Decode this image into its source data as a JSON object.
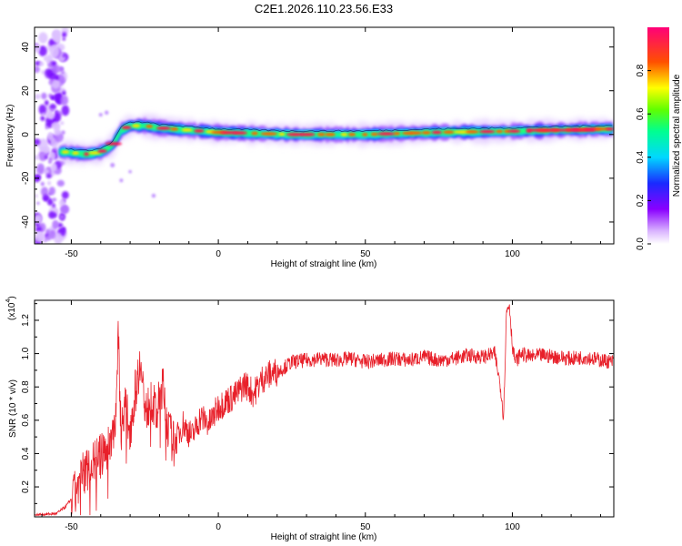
{
  "title": "C2E1.2026.110.23.56.E33",
  "chart_data": [
    {
      "type": "heatmap",
      "title": "C2E1.2026.110.23.56.E33",
      "xlabel": "Height of straight line (km)",
      "ylabel": "Frequency (Hz)",
      "xlim": [
        -62.5,
        134.5
      ],
      "ylim": [
        -50,
        49
      ],
      "xticks": [
        -50,
        0,
        50,
        100
      ],
      "xtick_labels": [
        "-50",
        "0",
        "50",
        "100"
      ],
      "yticks": [
        -40,
        -20,
        0,
        20,
        40
      ],
      "ytick_labels": [
        "-40",
        "-20",
        "0",
        "20",
        "40"
      ],
      "colorbar": {
        "label": "Normalized spectral amplitude",
        "range": [
          0,
          1
        ],
        "ticks": [
          0.0,
          0.2,
          0.4,
          0.6,
          0.8
        ],
        "tick_labels": [
          "0.0",
          "0.2",
          "0.4",
          "0.6",
          "0.8"
        ],
        "colors": [
          "#ffffff",
          "#c080ff",
          "#7000ff",
          "#0030ff",
          "#00e0ff",
          "#00ff60",
          "#ffff00",
          "#ff4000",
          "#ff0060"
        ]
      },
      "ridge": [
        {
          "x": -52,
          "f": -8
        },
        {
          "x": -45,
          "f": -9
        },
        {
          "x": -40,
          "f": -8
        },
        {
          "x": -36,
          "f": -5
        },
        {
          "x": -33,
          "f": 2
        },
        {
          "x": -30,
          "f": 4
        },
        {
          "x": -25,
          "f": 4
        },
        {
          "x": -20,
          "f": 3
        },
        {
          "x": -10,
          "f": 2
        },
        {
          "x": 0,
          "f": 1
        },
        {
          "x": 25,
          "f": 0
        },
        {
          "x": 50,
          "f": 0
        },
        {
          "x": 75,
          "f": 1
        },
        {
          "x": 100,
          "f": 1.5
        },
        {
          "x": 130,
          "f": 2.5
        }
      ]
    },
    {
      "type": "line",
      "xlabel": "Height of straight line (km)",
      "ylabel": "SNR (10 * v/v)",
      "exponent_label": "(x10",
      "exponent_sup": "4",
      "exponent_close": ")",
      "xlim": [
        -62.5,
        134.5
      ],
      "ylim": [
        0.02,
        1.32
      ],
      "xticks": [
        -50,
        0,
        50,
        100
      ],
      "xtick_labels": [
        "-50",
        "0",
        "50",
        "100"
      ],
      "yticks": [
        0.2,
        0.4,
        0.6,
        0.8,
        1.0,
        1.2
      ],
      "ytick_labels": [
        "0.2",
        "0.4",
        "0.6",
        "0.8",
        "1.0",
        "1.2"
      ],
      "series": [
        {
          "name": "SNR",
          "color": "#e8202a",
          "x": [
            -62.5,
            -55,
            -52,
            -49,
            -46,
            -43,
            -40,
            -37,
            -35,
            -34,
            -33,
            -32,
            -30,
            -28,
            -27,
            -26,
            -25,
            -23,
            -21,
            -19,
            -17,
            -15,
            -12,
            -9,
            -6,
            -3,
            0,
            3,
            6,
            9,
            12,
            15,
            18,
            21,
            25,
            30,
            35,
            40,
            45,
            50,
            55,
            60,
            65,
            70,
            75,
            80,
            85,
            90,
            94,
            96,
            97,
            98,
            99,
            100,
            101,
            103,
            106,
            110,
            115,
            120,
            125,
            130,
            134.5
          ],
          "y": [
            0.03,
            0.04,
            0.08,
            0.15,
            0.28,
            0.35,
            0.38,
            0.45,
            0.6,
            1.1,
            0.5,
            0.7,
            0.55,
            0.8,
            0.9,
            0.97,
            0.6,
            0.75,
            0.62,
            0.82,
            0.55,
            0.45,
            0.58,
            0.5,
            0.62,
            0.58,
            0.68,
            0.72,
            0.75,
            0.82,
            0.76,
            0.85,
            0.88,
            0.9,
            0.95,
            0.96,
            0.97,
            0.96,
            0.97,
            0.95,
            0.96,
            0.97,
            0.96,
            0.98,
            0.96,
            0.97,
            0.99,
            0.98,
            1.0,
            0.8,
            0.62,
            1.25,
            1.3,
            1.05,
            0.95,
            1.0,
            0.98,
            0.99,
            0.98,
            0.97,
            0.98,
            0.96,
            0.95
          ]
        }
      ]
    }
  ]
}
